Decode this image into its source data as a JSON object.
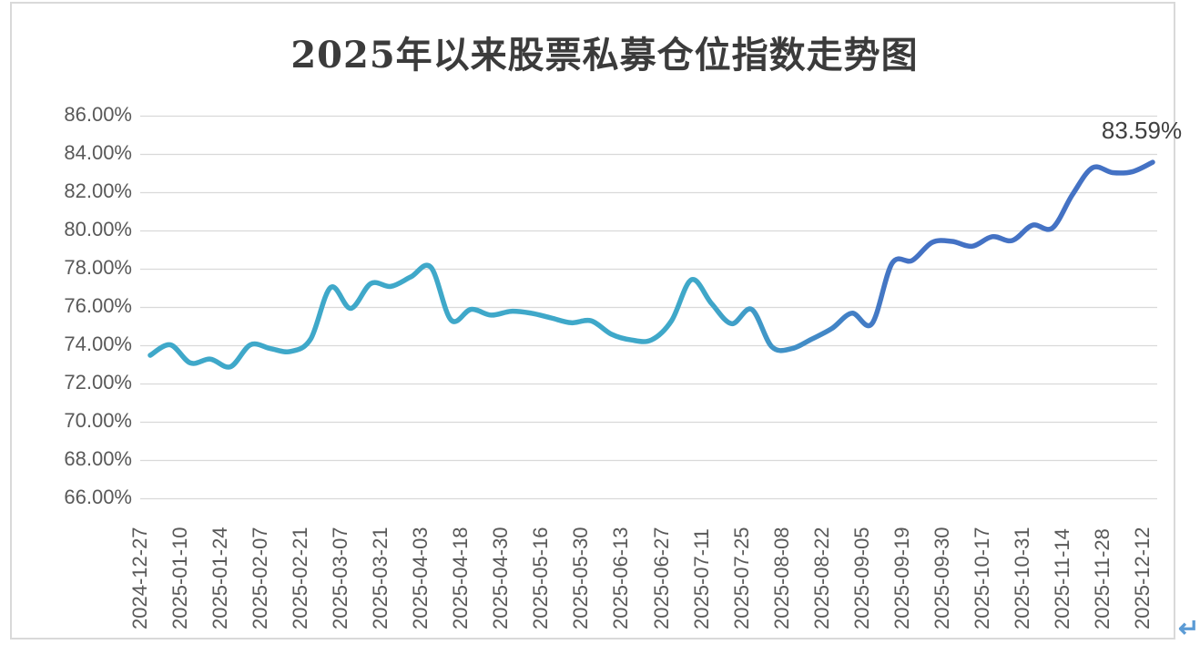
{
  "icons": {
    "return_arrow": "↵"
  },
  "colors": {
    "grid": "#d9d9d9",
    "frame_border": "#d9d9d9",
    "axis_text": "#595959",
    "title_text": "#3b3b3b",
    "data_label_text": "#404040",
    "line_teal": "#3FA8C9",
    "line_blue": "#4472C4",
    "paragraph_mark": "#5b9bd5"
  },
  "chart_data": {
    "type": "line",
    "title": "2025年以来股票私募仓位指数走势图",
    "xlabel": "",
    "ylabel": "",
    "ylim": [
      66,
      86
    ],
    "ytick_step": 2,
    "yticks": [
      86,
      84,
      82,
      80,
      78,
      76,
      74,
      72,
      70,
      68,
      66
    ],
    "ytick_format": "0.00%",
    "grid": "horizontal",
    "legend": "none",
    "smooth": true,
    "categories": [
      "2024-12-27",
      "2025-01-10",
      "2025-01-24",
      "2025-02-07",
      "2025-02-21",
      "2025-03-07",
      "2025-03-21",
      "2025-04-03",
      "2025-04-18",
      "2025-04-30",
      "2025-05-16",
      "2025-05-30",
      "2025-06-13",
      "2025-06-27",
      "2025-07-11",
      "2025-07-25",
      "2025-08-08",
      "2025-08-22",
      "2025-09-05",
      "2025-09-19",
      "2025-09-30",
      "2025-10-17",
      "2025-10-31",
      "2025-11-14",
      "2025-11-28",
      "2025-12-12"
    ],
    "categories_note": "axis labels shown every other data point; series is sampled weekly",
    "values": [
      73.5,
      74.05,
      73.1,
      73.3,
      72.9,
      74.05,
      73.85,
      73.7,
      74.35,
      77.05,
      75.95,
      77.25,
      77.1,
      77.6,
      78.1,
      75.35,
      75.9,
      75.6,
      75.8,
      75.7,
      75.45,
      75.2,
      75.3,
      74.6,
      74.3,
      74.3,
      75.3,
      77.45,
      76.2,
      75.15,
      75.9,
      73.95,
      73.85,
      74.35,
      74.9,
      75.7,
      75.15,
      78.3,
      78.45,
      79.4,
      79.45,
      79.2,
      79.7,
      79.5,
      80.3,
      80.15,
      81.9,
      83.3,
      83.05,
      83.1,
      83.59
    ],
    "series_name": "股票私募仓位指数",
    "line_gradient_stops": [
      {
        "offset": 0.0,
        "color": "#3FA8C9"
      },
      {
        "offset": 0.55,
        "color": "#3FA8C9"
      },
      {
        "offset": 0.75,
        "color": "#4472C4"
      },
      {
        "offset": 1.0,
        "color": "#4472C4"
      }
    ],
    "data_label": {
      "text": "83.59%",
      "applies_to": "last point"
    }
  }
}
